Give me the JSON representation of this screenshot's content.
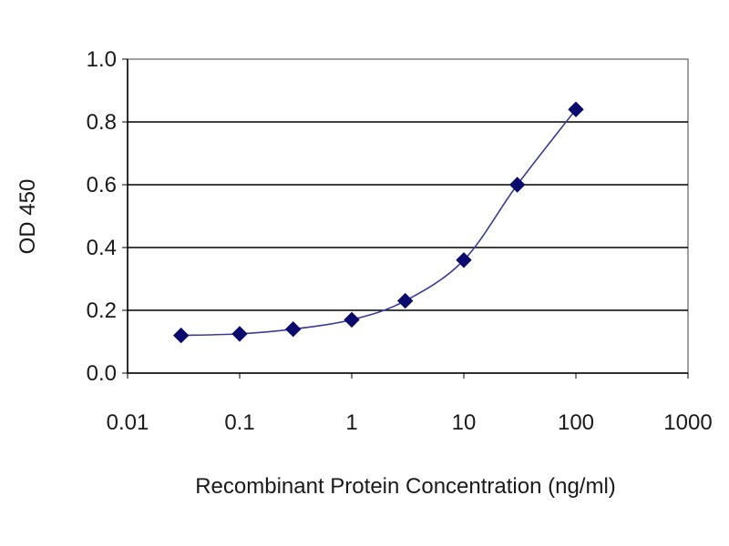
{
  "chart_data": {
    "type": "scatter",
    "title": "",
    "xlabel": "Recombinant Protein Concentration (ng/ml)",
    "ylabel": "OD 450",
    "x_scale": "log",
    "xlim": [
      0.01,
      1000
    ],
    "ylim": [
      0.0,
      1.0
    ],
    "x_tick_labels": [
      "0.01",
      "0.1",
      "1",
      "10",
      "100",
      "1000"
    ],
    "y_tick_labels": [
      "0.0",
      "0.2",
      "0.4",
      "0.6",
      "0.8",
      "1.0"
    ],
    "grid": "horizontal",
    "legend": "none",
    "fit_line": true,
    "series": [
      {
        "x": [
          0.03,
          0.1,
          0.3,
          1,
          3,
          10,
          30,
          100
        ],
        "y": [
          0.12,
          0.125,
          0.14,
          0.17,
          0.23,
          0.36,
          0.6,
          0.84
        ]
      }
    ],
    "colors": {
      "marker": "#0b0b6e",
      "line": "#3a3a9a",
      "grid": "#000000",
      "plot_border": "#808080",
      "background": "#ffffff"
    }
  }
}
